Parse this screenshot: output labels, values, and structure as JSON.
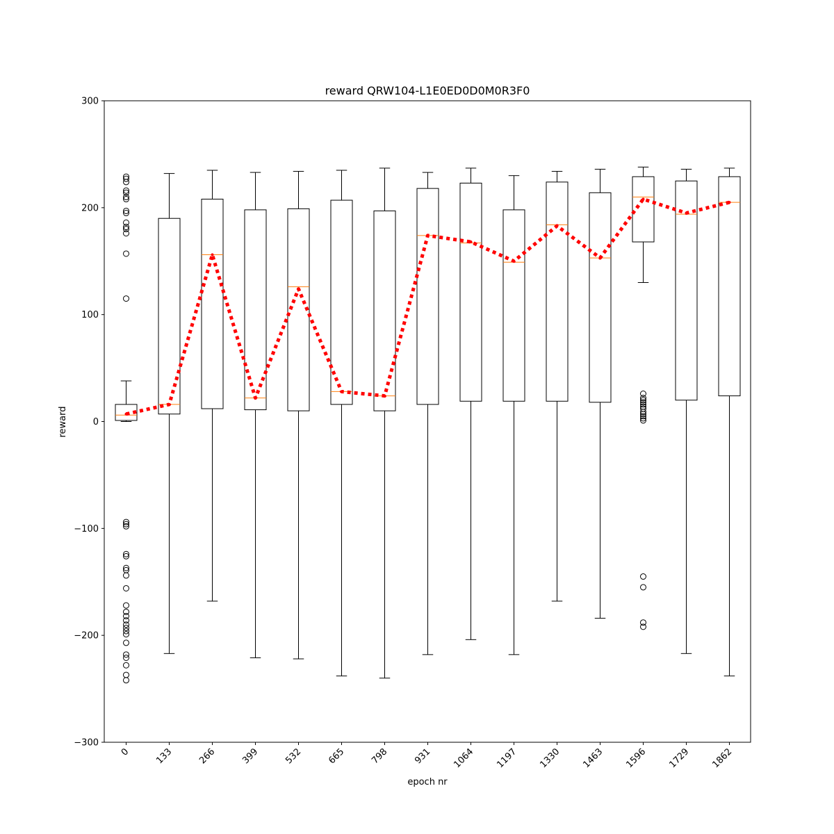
{
  "chart_data": {
    "type": "box",
    "title": "reward QRW104-L1E0ED0D0M0R3F0",
    "xlabel": "epoch nr",
    "ylabel": "reward",
    "ylim": [
      -300,
      300
    ],
    "yticks": [
      -300,
      -200,
      -100,
      0,
      100,
      200,
      300
    ],
    "categories": [
      "0",
      "133",
      "266",
      "399",
      "532",
      "665",
      "798",
      "931",
      "1064",
      "1197",
      "1330",
      "1463",
      "1596",
      "1729",
      "1862"
    ],
    "boxes": [
      {
        "whisker_low": 0,
        "q1": 1,
        "median": 6,
        "q3": 16,
        "whisker_high": 38,
        "outliers": [
          229,
          227,
          224,
          216,
          214,
          210,
          208,
          197,
          195,
          186,
          182,
          180,
          176,
          157,
          115,
          -94,
          -96,
          -98,
          -124,
          -126,
          -137,
          -139,
          -144,
          -156,
          -172,
          -178,
          -182,
          -186,
          -190,
          -193,
          -196,
          -199,
          -207,
          -218,
          -221,
          -228,
          -237,
          -242
        ]
      },
      {
        "whisker_low": -217,
        "q1": 7,
        "median": 16,
        "q3": 190,
        "whisker_high": 232,
        "outliers": []
      },
      {
        "whisker_low": -168,
        "q1": 12,
        "median": 156,
        "q3": 208,
        "whisker_high": 235,
        "outliers": []
      },
      {
        "whisker_low": -221,
        "q1": 11,
        "median": 22,
        "q3": 198,
        "whisker_high": 233,
        "outliers": []
      },
      {
        "whisker_low": -222,
        "q1": 10,
        "median": 126,
        "q3": 199,
        "whisker_high": 234,
        "outliers": []
      },
      {
        "whisker_low": -238,
        "q1": 16,
        "median": 28,
        "q3": 207,
        "whisker_high": 235,
        "outliers": []
      },
      {
        "whisker_low": -240,
        "q1": 10,
        "median": 24,
        "q3": 197,
        "whisker_high": 237,
        "outliers": []
      },
      {
        "whisker_low": -218,
        "q1": 16,
        "median": 174,
        "q3": 218,
        "whisker_high": 233,
        "outliers": []
      },
      {
        "whisker_low": -204,
        "q1": 19,
        "median": 167,
        "q3": 223,
        "whisker_high": 237,
        "outliers": []
      },
      {
        "whisker_low": -218,
        "q1": 19,
        "median": 149,
        "q3": 198,
        "whisker_high": 230,
        "outliers": []
      },
      {
        "whisker_low": -168,
        "q1": 19,
        "median": 184,
        "q3": 224,
        "whisker_high": 234,
        "outliers": []
      },
      {
        "whisker_low": -184,
        "q1": 18,
        "median": 153,
        "q3": 214,
        "whisker_high": 236,
        "outliers": []
      },
      {
        "whisker_low": 130,
        "q1": 168,
        "median": 210,
        "q3": 229,
        "whisker_high": 238,
        "outliers": [
          26,
          22,
          20,
          18,
          16,
          14,
          12,
          9,
          7,
          5,
          3,
          1,
          -145,
          -155,
          -188,
          -192
        ]
      },
      {
        "whisker_low": -217,
        "q1": 20,
        "median": 194,
        "q3": 225,
        "whisker_high": 236,
        "outliers": []
      },
      {
        "whisker_low": -238,
        "q1": 24,
        "median": 205,
        "q3": 229,
        "whisker_high": 237,
        "outliers": []
      }
    ],
    "mean_line": [
      7,
      16,
      156,
      22,
      124,
      28,
      24,
      174,
      168,
      150,
      183,
      153,
      208,
      195,
      205
    ],
    "colors": {
      "box": "#000000",
      "median": "#ff7f0e",
      "mean_line": "#ff0000",
      "outlier": "#000000"
    }
  }
}
